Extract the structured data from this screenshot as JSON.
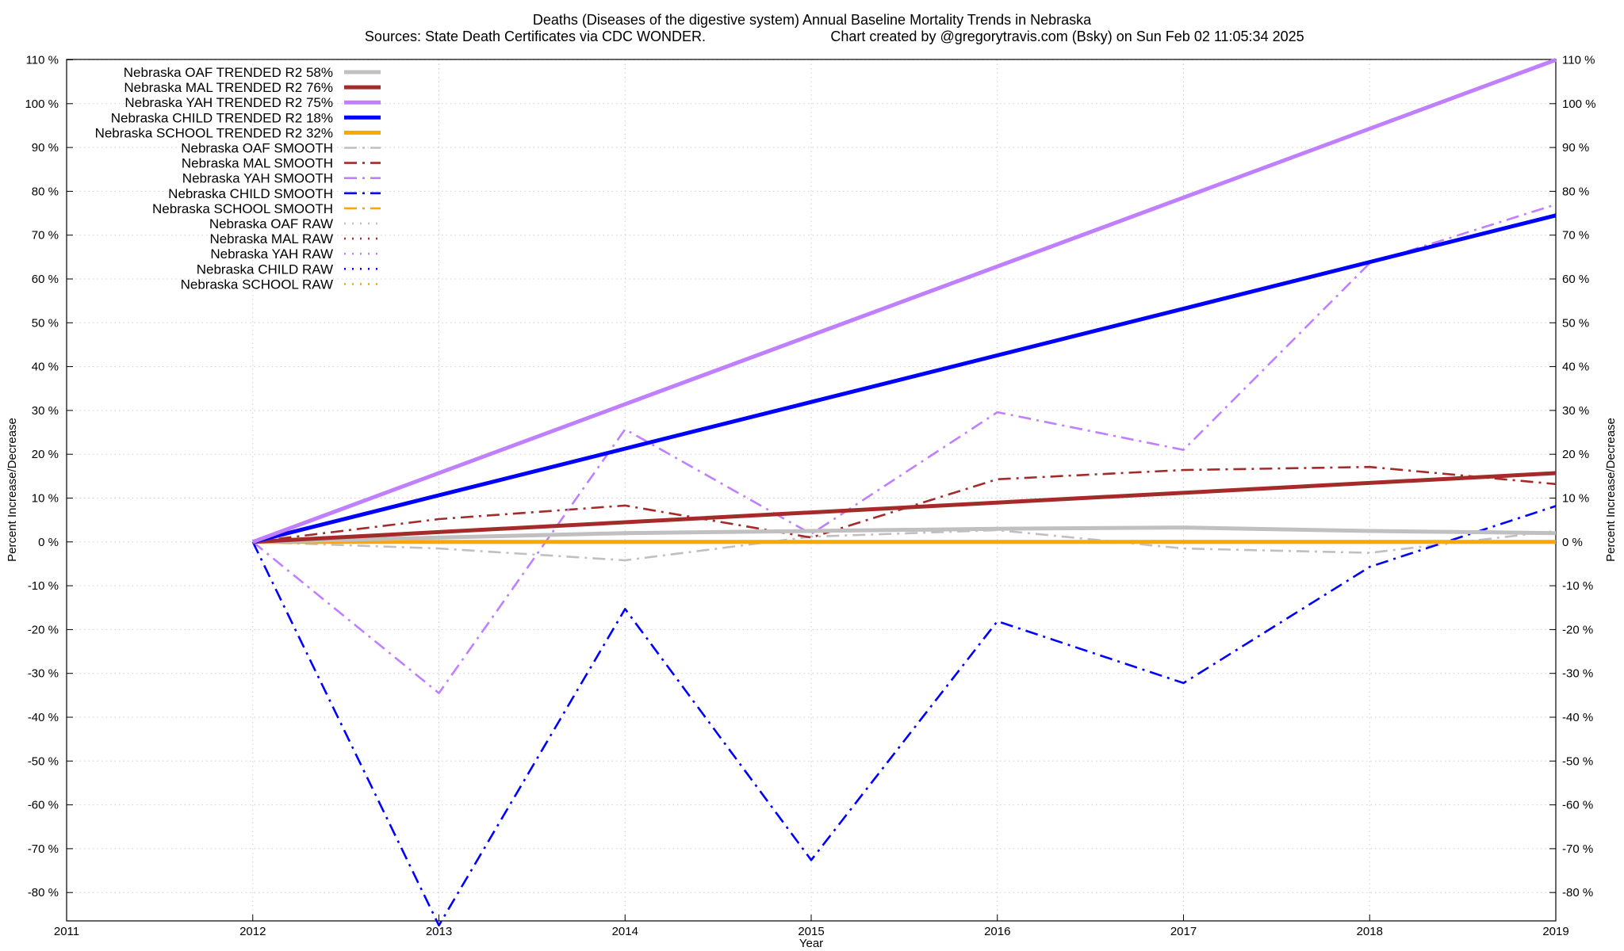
{
  "chart_data": {
    "type": "line",
    "title": "Deaths (Diseases of the digestive system)  Annual Baseline Mortality Trends in Nebraska",
    "subtitle_left": "Sources: State Death Certificates via CDC WONDER.",
    "subtitle_right": "Chart created by @gregorytravis.com (Bsky) on Sun Feb 02 11:05:34 2025",
    "xlabel": "Year",
    "ylabel": "Percent Increase/Decrease",
    "ylabel_right": "Percent Increase/Decrease",
    "xlim": [
      2011,
      2019
    ],
    "ylim": [
      -88,
      110
    ],
    "x_ticks": [
      "2011",
      "2012",
      "2013",
      "2014",
      "2015",
      "2016",
      "2017",
      "2018",
      "2019"
    ],
    "y_ticks": [
      "110 %",
      "100 %",
      "90 %",
      "80 %",
      "70 %",
      "60 %",
      "50 %",
      "40 %",
      "30 %",
      "20 %",
      "10 %",
      "0 %",
      "-10 %",
      "-20 %",
      "-30 %",
      "-40 %",
      "-50 %",
      "-60 %",
      "-70 %",
      "-80 %"
    ],
    "grid": true,
    "legend_position": "top-left",
    "colors": {
      "oaf": "#c0c0c0",
      "mal": "#a52a2a",
      "yah": "#bf7fff",
      "child": "#0000ff",
      "school": "#ffa500"
    },
    "series": [
      {
        "name": "Nebraska OAF TRENDED R2  58%",
        "style": "solid-thick",
        "color": "#c0c0c0",
        "x": [
          2012,
          2013,
          2014,
          2015,
          2016,
          2017,
          2018,
          2019
        ],
        "y": [
          0,
          1,
          2,
          2.5,
          3,
          3.3,
          2.5,
          2
        ]
      },
      {
        "name": "Nebraska MAL TRENDED R2  76%",
        "style": "solid-thick",
        "color": "#a52a2a",
        "x": [
          2012,
          2019
        ],
        "y": [
          0,
          15.7
        ]
      },
      {
        "name": "Nebraska YAH TRENDED R2  75%",
        "style": "solid-thick",
        "color": "#bf7fff",
        "x": [
          2012,
          2019
        ],
        "y": [
          0,
          110
        ]
      },
      {
        "name": "Nebraska CHILD TRENDED R2  18%",
        "style": "solid-thick",
        "color": "#0000ff",
        "x": [
          2012,
          2019
        ],
        "y": [
          0,
          74.5
        ]
      },
      {
        "name": "Nebraska SCHOOL TRENDED R2  32%",
        "style": "solid-thick",
        "color": "#ffa500",
        "x": [
          2012,
          2019
        ],
        "y": [
          0,
          0
        ]
      },
      {
        "name": "Nebraska OAF SMOOTH",
        "style": "dashdot",
        "color": "#c0c0c0",
        "x": [
          2012,
          2013,
          2014,
          2015,
          2016,
          2017,
          2018,
          2019
        ],
        "y": [
          0,
          -1.5,
          -4.2,
          1.2,
          2.7,
          -1.5,
          -2.5,
          2.5
        ]
      },
      {
        "name": "Nebraska MAL SMOOTH",
        "style": "dashdot",
        "color": "#a52a2a",
        "x": [
          2012,
          2013,
          2014,
          2015,
          2016,
          2017,
          2018,
          2019
        ],
        "y": [
          0,
          5.2,
          8.3,
          1.0,
          14.3,
          16.4,
          17.1,
          13.2
        ]
      },
      {
        "name": "Nebraska YAH SMOOTH",
        "style": "dashdot",
        "color": "#bf7fff",
        "x": [
          2012,
          2013,
          2014,
          2015,
          2016,
          2017,
          2018,
          2019
        ],
        "y": [
          0,
          -34.5,
          25.7,
          1.8,
          29.6,
          21.0,
          63.6,
          77.0
        ]
      },
      {
        "name": "Nebraska CHILD SMOOTH",
        "style": "dashdot",
        "color": "#0000ff",
        "x": [
          2012,
          2013,
          2014,
          2015,
          2016,
          2017,
          2018,
          2019
        ],
        "y": [
          0,
          -87.5,
          -15.3,
          -72.6,
          -18.1,
          -32.2,
          -5.7,
          8.2
        ]
      },
      {
        "name": "Nebraska SCHOOL SMOOTH",
        "style": "dashdot",
        "color": "#ffa500",
        "x": [
          2012,
          2019
        ],
        "y": [
          0,
          0
        ]
      },
      {
        "name": "Nebraska OAF RAW",
        "style": "dotted",
        "color": "#c0c0c0",
        "x": [],
        "y": []
      },
      {
        "name": "Nebraska MAL RAW",
        "style": "dotted",
        "color": "#a52a2a",
        "x": [],
        "y": []
      },
      {
        "name": "Nebraska YAH RAW",
        "style": "dotted",
        "color": "#bf7fff",
        "x": [],
        "y": []
      },
      {
        "name": "Nebraska CHILD RAW",
        "style": "dotted",
        "color": "#0000ff",
        "x": [],
        "y": []
      },
      {
        "name": "Nebraska SCHOOL RAW",
        "style": "dotted",
        "color": "#ffa500",
        "x": [],
        "y": []
      }
    ]
  }
}
